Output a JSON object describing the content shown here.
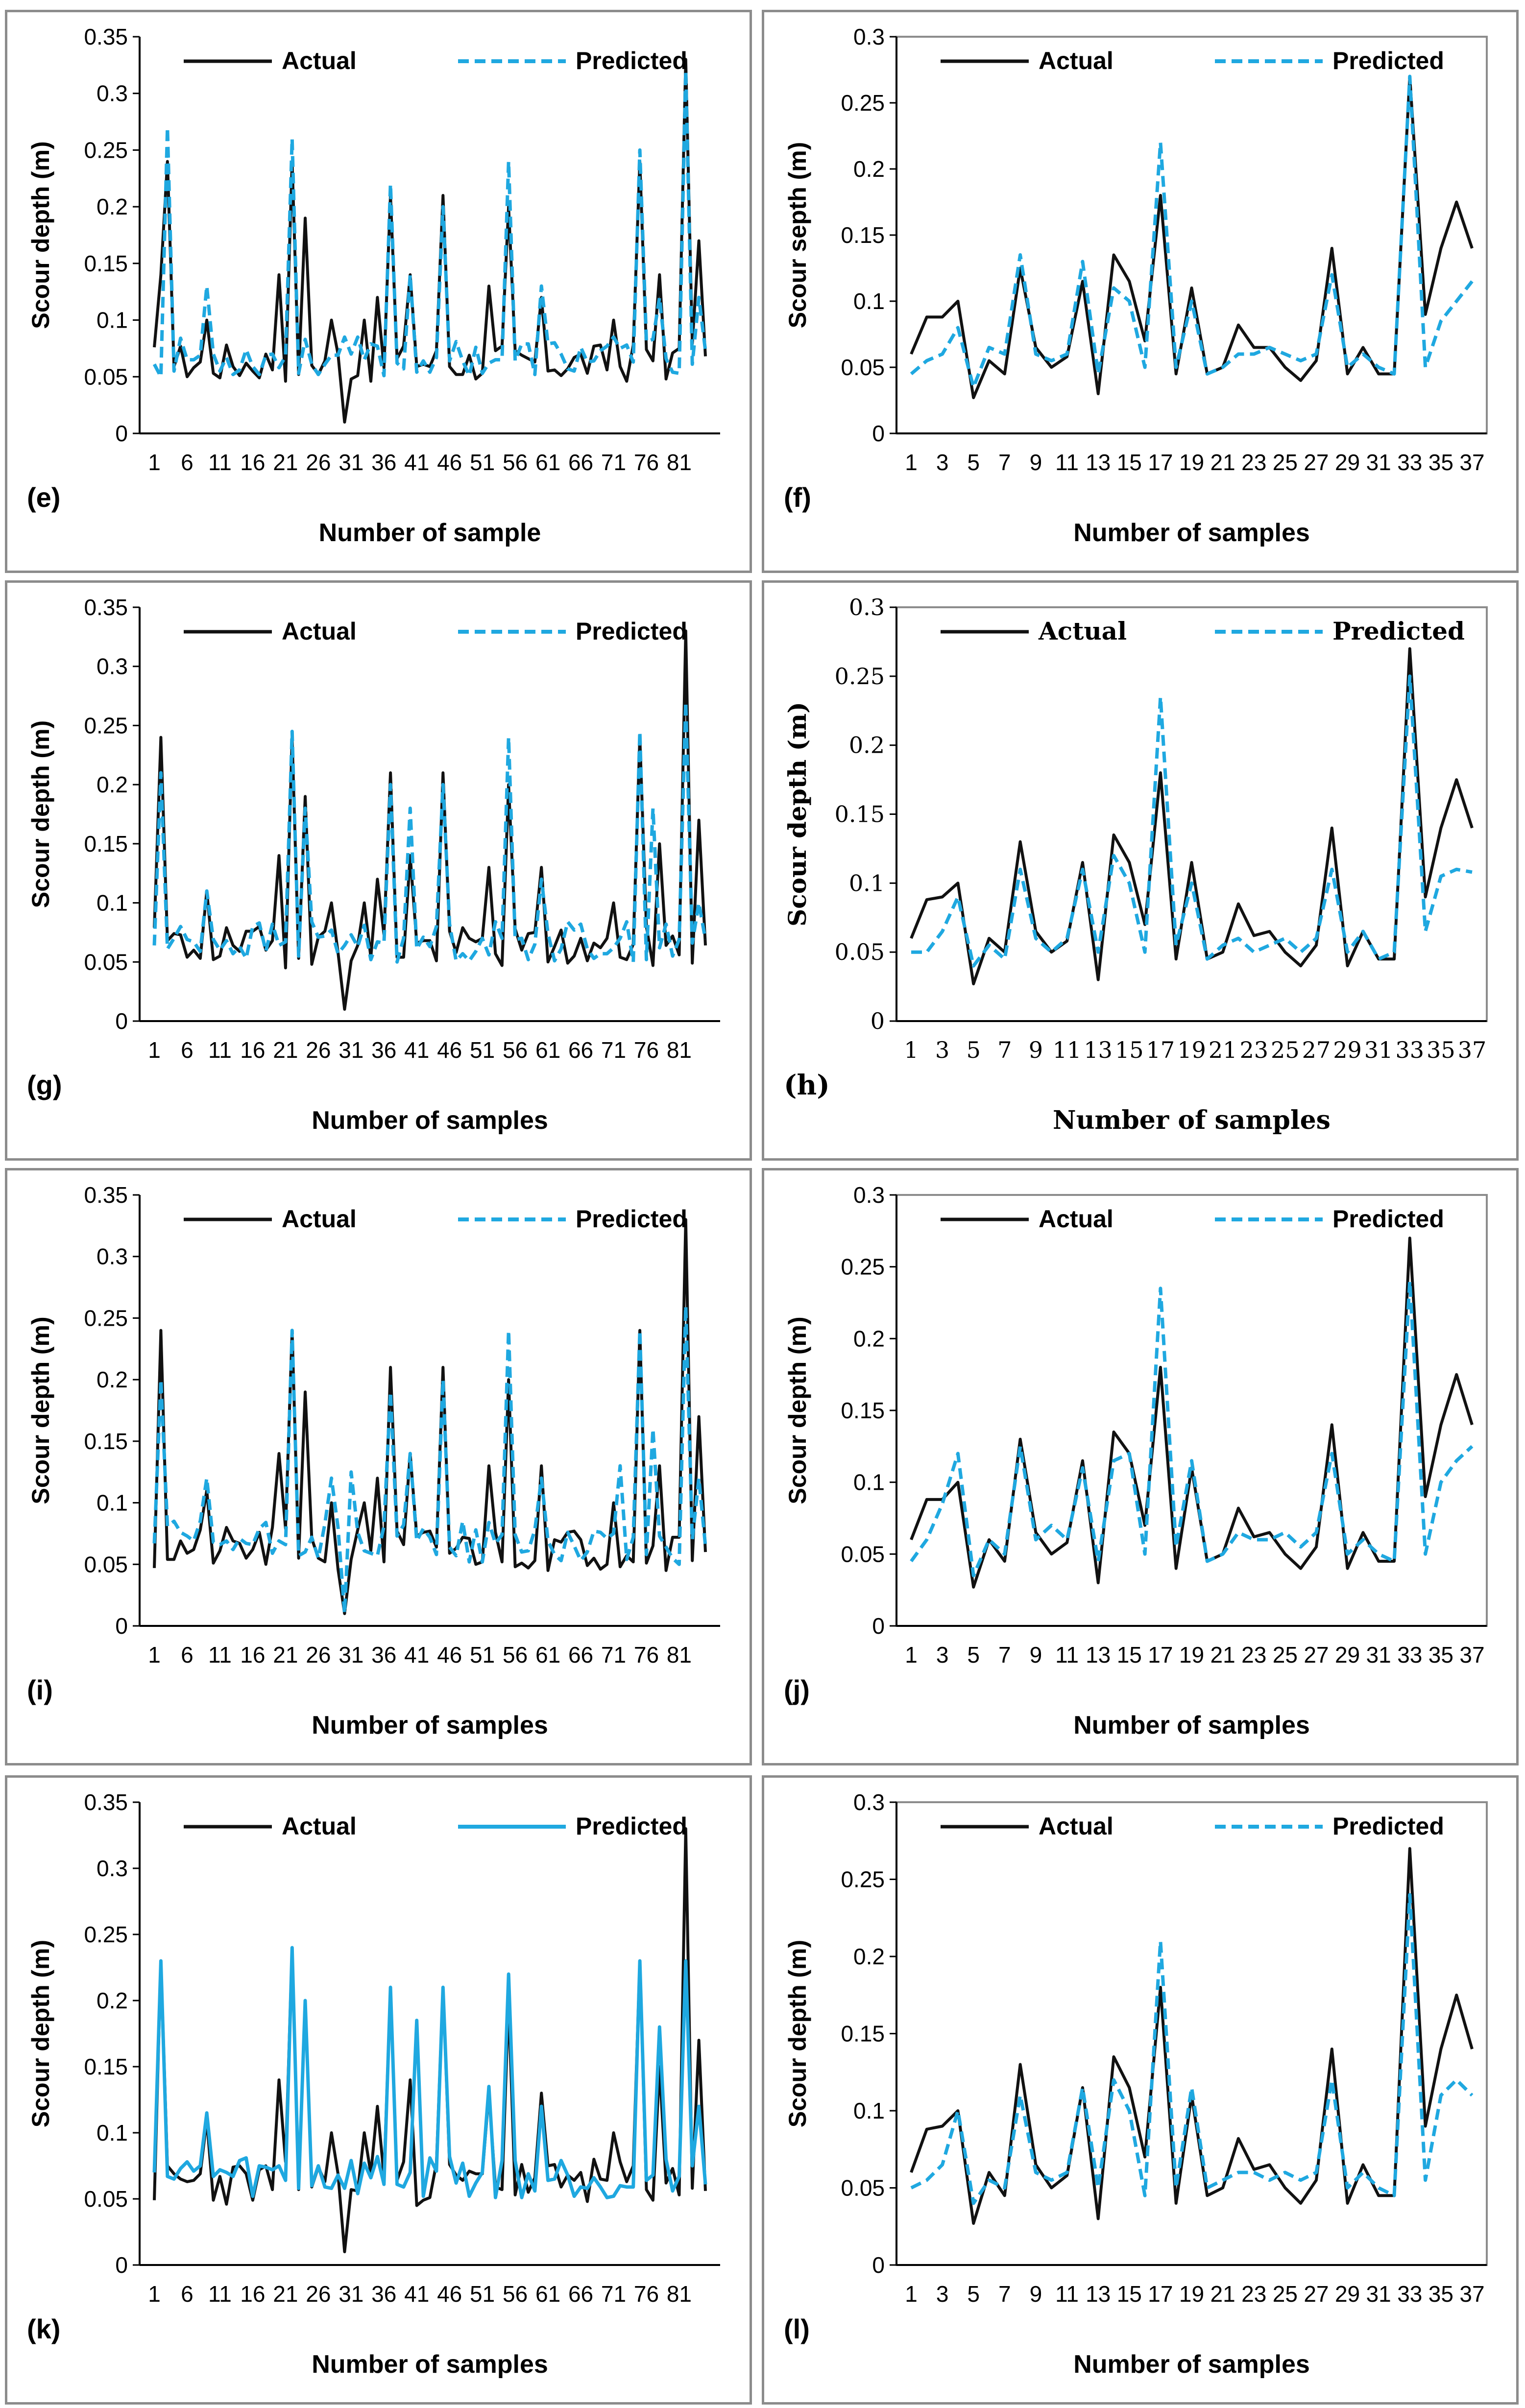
{
  "colors": {
    "actual": "#111111",
    "predicted": "#1fa8e0",
    "axis": "#000000",
    "frame": "#8c8c8c"
  },
  "chart_data": [
    {
      "panel": "(e)",
      "type": "line",
      "ylabel": "Scour depth (m)",
      "xlabel": "Number of sample",
      "ylim": [
        0,
        0.35
      ],
      "yticks": [
        "0",
        "0.05",
        "0.1",
        "0.15",
        "0.2",
        "0.25",
        "0.3",
        "0.35"
      ],
      "xtick_labels": [
        "1",
        "6",
        "11",
        "16",
        "21",
        "26",
        "31",
        "36",
        "41",
        "46",
        "51",
        "56",
        "61",
        "66",
        "71",
        "76",
        "81"
      ],
      "n": 85,
      "style": "dashed",
      "legend": {
        "actual": "Actual",
        "predicted": "Predicted"
      },
      "peaks_actual": [
        [
          2,
          0.14
        ],
        [
          3,
          0.24
        ],
        [
          9,
          0.1
        ],
        [
          20,
          0.14
        ],
        [
          22,
          0.24
        ],
        [
          24,
          0.19
        ],
        [
          28,
          0.1
        ],
        [
          30,
          0.01
        ],
        [
          33,
          0.1
        ],
        [
          35,
          0.12
        ],
        [
          37,
          0.21
        ],
        [
          40,
          0.14
        ],
        [
          45,
          0.21
        ],
        [
          52,
          0.13
        ],
        [
          55,
          0.2
        ],
        [
          60,
          0.12
        ],
        [
          66,
          0.07
        ],
        [
          71,
          0.1
        ],
        [
          75,
          0.24
        ],
        [
          78,
          0.14
        ],
        [
          82,
          0.33
        ],
        [
          84,
          0.17
        ]
      ],
      "peaks_predicted": [
        [
          3,
          0.27
        ],
        [
          9,
          0.13
        ],
        [
          22,
          0.26
        ],
        [
          37,
          0.22
        ],
        [
          40,
          0.14
        ],
        [
          45,
          0.2
        ],
        [
          55,
          0.24
        ],
        [
          60,
          0.13
        ],
        [
          75,
          0.25
        ],
        [
          78,
          0.12
        ],
        [
          82,
          0.32
        ],
        [
          84,
          0.12
        ]
      ]
    },
    {
      "panel": "(f)",
      "type": "line",
      "ylabel": "Scour septh (m)",
      "xlabel": "Number of samples",
      "ylim": [
        0,
        0.3
      ],
      "yticks": [
        "0",
        "0.05",
        "0.1",
        "0.15",
        "0.2",
        "0.25",
        "0.3"
      ],
      "xtick_labels": [
        "1",
        "3",
        "5",
        "7",
        "9",
        "11",
        "13",
        "15",
        "17",
        "19",
        "21",
        "23",
        "25",
        "27",
        "29",
        "31",
        "33",
        "35",
        "37"
      ],
      "style": "dashed",
      "legend": {
        "actual": "Actual",
        "predicted": "Predicted"
      },
      "actual": [
        0.06,
        0.088,
        0.088,
        0.1,
        0.027,
        0.055,
        0.045,
        0.125,
        0.065,
        0.05,
        0.058,
        0.115,
        0.03,
        0.135,
        0.115,
        0.07,
        0.18,
        0.045,
        0.11,
        0.045,
        0.05,
        0.082,
        0.065,
        0.065,
        0.05,
        0.04,
        0.055,
        0.14,
        0.045,
        0.065,
        0.045,
        0.045,
        0.27,
        0.09,
        0.14,
        0.175,
        0.14
      ],
      "predicted": [
        0.045,
        0.055,
        0.06,
        0.08,
        0.035,
        0.065,
        0.06,
        0.135,
        0.06,
        0.055,
        0.06,
        0.13,
        0.045,
        0.11,
        0.1,
        0.05,
        0.22,
        0.05,
        0.1,
        0.045,
        0.05,
        0.06,
        0.06,
        0.065,
        0.06,
        0.055,
        0.06,
        0.12,
        0.05,
        0.06,
        0.05,
        0.045,
        0.27,
        0.05,
        0.085,
        0.1,
        0.115
      ]
    },
    {
      "panel": "(g)",
      "type": "line",
      "ylabel": "Scour depth (m)",
      "xlabel": "Number of samples",
      "ylim": [
        0,
        0.35
      ],
      "yticks": [
        "0",
        "0.05",
        "0.1",
        "0.15",
        "0.2",
        "0.25",
        "0.3",
        "0.35"
      ],
      "xtick_labels": [
        "1",
        "6",
        "11",
        "16",
        "21",
        "26",
        "31",
        "36",
        "41",
        "46",
        "51",
        "56",
        "61",
        "66",
        "71",
        "76",
        "81"
      ],
      "n": 85,
      "style": "dashed",
      "legend": {
        "actual": "Actual",
        "predicted": "Predicted"
      },
      "peaks_actual": [
        [
          2,
          0.24
        ],
        [
          9,
          0.11
        ],
        [
          20,
          0.14
        ],
        [
          22,
          0.24
        ],
        [
          24,
          0.19
        ],
        [
          28,
          0.1
        ],
        [
          30,
          0.01
        ],
        [
          33,
          0.1
        ],
        [
          35,
          0.12
        ],
        [
          37,
          0.21
        ],
        [
          40,
          0.14
        ],
        [
          45,
          0.21
        ],
        [
          52,
          0.13
        ],
        [
          55,
          0.2
        ],
        [
          60,
          0.13
        ],
        [
          66,
          0.07
        ],
        [
          71,
          0.1
        ],
        [
          75,
          0.24
        ],
        [
          78,
          0.15
        ],
        [
          82,
          0.33
        ],
        [
          84,
          0.17
        ]
      ],
      "peaks_predicted": [
        [
          2,
          0.21
        ],
        [
          9,
          0.11
        ],
        [
          22,
          0.245
        ],
        [
          24,
          0.18
        ],
        [
          37,
          0.2
        ],
        [
          40,
          0.18
        ],
        [
          45,
          0.2
        ],
        [
          55,
          0.24
        ],
        [
          60,
          0.12
        ],
        [
          75,
          0.245
        ],
        [
          77,
          0.18
        ],
        [
          82,
          0.27
        ],
        [
          84,
          0.1
        ]
      ]
    },
    {
      "panel": "(h)",
      "type": "line",
      "ylabel": "Scour depth (m)",
      "xlabel": "Number of samples",
      "ylim": [
        0,
        0.3
      ],
      "yticks": [
        "0",
        "0.05",
        "0.1",
        "0.15",
        "0.2",
        "0.25",
        "0.3"
      ],
      "xtick_labels": [
        "1",
        "3",
        "5",
        "7",
        "9",
        "11",
        "13",
        "15",
        "17",
        "19",
        "21",
        "23",
        "25",
        "27",
        "29",
        "31",
        "33",
        "35",
        "37"
      ],
      "style": "dashed",
      "serif": true,
      "legend": {
        "actual": "Actual",
        "predicted": "Predicted"
      },
      "actual": [
        0.06,
        0.088,
        0.09,
        0.1,
        0.027,
        0.06,
        0.05,
        0.13,
        0.065,
        0.05,
        0.058,
        0.115,
        0.03,
        0.135,
        0.115,
        0.07,
        0.18,
        0.045,
        0.115,
        0.045,
        0.05,
        0.085,
        0.062,
        0.065,
        0.05,
        0.04,
        0.055,
        0.14,
        0.04,
        0.065,
        0.045,
        0.045,
        0.27,
        0.09,
        0.14,
        0.175,
        0.14
      ],
      "predicted": [
        0.05,
        0.05,
        0.065,
        0.09,
        0.04,
        0.055,
        0.045,
        0.11,
        0.06,
        0.05,
        0.06,
        0.11,
        0.05,
        0.12,
        0.1,
        0.05,
        0.235,
        0.055,
        0.1,
        0.045,
        0.055,
        0.06,
        0.05,
        0.055,
        0.06,
        0.05,
        0.06,
        0.11,
        0.05,
        0.065,
        0.045,
        0.05,
        0.25,
        0.065,
        0.105,
        0.11,
        0.108
      ]
    },
    {
      "panel": "(i)",
      "type": "line",
      "ylabel": "Scour depth (m)",
      "xlabel": "Number of samples",
      "ylim": [
        0,
        0.35
      ],
      "yticks": [
        "0",
        "0.05",
        "0.1",
        "0.15",
        "0.2",
        "0.25",
        "0.3",
        "0.35"
      ],
      "xtick_labels": [
        "1",
        "6",
        "11",
        "16",
        "21",
        "26",
        "31",
        "36",
        "41",
        "46",
        "51",
        "56",
        "61",
        "66",
        "71",
        "76",
        "81"
      ],
      "n": 85,
      "style": "dashed",
      "legend": {
        "actual": "Actual",
        "predicted": "Predicted"
      },
      "peaks_actual": [
        [
          2,
          0.24
        ],
        [
          9,
          0.11
        ],
        [
          20,
          0.14
        ],
        [
          22,
          0.24
        ],
        [
          24,
          0.19
        ],
        [
          28,
          0.1
        ],
        [
          30,
          0.01
        ],
        [
          33,
          0.1
        ],
        [
          35,
          0.12
        ],
        [
          37,
          0.21
        ],
        [
          40,
          0.14
        ],
        [
          45,
          0.21
        ],
        [
          52,
          0.13
        ],
        [
          55,
          0.2
        ],
        [
          60,
          0.13
        ],
        [
          66,
          0.07
        ],
        [
          71,
          0.1
        ],
        [
          75,
          0.24
        ],
        [
          78,
          0.13
        ],
        [
          82,
          0.33
        ],
        [
          84,
          0.17
        ]
      ],
      "peaks_predicted": [
        [
          2,
          0.2
        ],
        [
          9,
          0.12
        ],
        [
          22,
          0.24
        ],
        [
          28,
          0.12
        ],
        [
          30,
          0.01
        ],
        [
          31,
          0.125
        ],
        [
          37,
          0.19
        ],
        [
          40,
          0.14
        ],
        [
          45,
          0.2
        ],
        [
          55,
          0.24
        ],
        [
          60,
          0.12
        ],
        [
          72,
          0.13
        ],
        [
          75,
          0.24
        ],
        [
          77,
          0.16
        ],
        [
          82,
          0.26
        ],
        [
          84,
          0.12
        ]
      ]
    },
    {
      "panel": "(j)",
      "type": "line",
      "ylabel": "Scour depth (m)",
      "xlabel": "Number of samples",
      "ylim": [
        0,
        0.3
      ],
      "yticks": [
        "0",
        "0.05",
        "0.1",
        "0.15",
        "0.2",
        "0.25",
        "0.3"
      ],
      "xtick_labels": [
        "1",
        "3",
        "5",
        "7",
        "9",
        "11",
        "13",
        "15",
        "17",
        "19",
        "21",
        "23",
        "25",
        "27",
        "29",
        "31",
        "33",
        "35",
        "37"
      ],
      "style": "dashed",
      "legend": {
        "actual": "Actual",
        "predicted": "Predicted"
      },
      "actual": [
        0.06,
        0.088,
        0.088,
        0.1,
        0.027,
        0.06,
        0.045,
        0.13,
        0.065,
        0.05,
        0.058,
        0.115,
        0.03,
        0.135,
        0.12,
        0.07,
        0.18,
        0.04,
        0.11,
        0.045,
        0.05,
        0.082,
        0.062,
        0.065,
        0.05,
        0.04,
        0.055,
        0.14,
        0.04,
        0.065,
        0.045,
        0.045,
        0.27,
        0.09,
        0.14,
        0.175,
        0.14
      ],
      "predicted": [
        0.045,
        0.06,
        0.085,
        0.12,
        0.035,
        0.06,
        0.05,
        0.125,
        0.06,
        0.07,
        0.06,
        0.11,
        0.045,
        0.115,
        0.12,
        0.05,
        0.235,
        0.055,
        0.115,
        0.045,
        0.05,
        0.065,
        0.06,
        0.06,
        0.065,
        0.055,
        0.065,
        0.12,
        0.05,
        0.06,
        0.05,
        0.045,
        0.24,
        0.05,
        0.1,
        0.115,
        0.125
      ]
    },
    {
      "panel": "(k)",
      "type": "line",
      "ylabel": "Scour depth (m)",
      "xlabel": "Number of samples",
      "ylim": [
        0,
        0.35
      ],
      "yticks": [
        "0",
        "0.05",
        "0.1",
        "0.15",
        "0.2",
        "0.25",
        "0.3",
        "0.35"
      ],
      "xtick_labels": [
        "1",
        "6",
        "11",
        "16",
        "21",
        "26",
        "31",
        "36",
        "41",
        "46",
        "51",
        "56",
        "61",
        "66",
        "71",
        "76",
        "81"
      ],
      "n": 85,
      "style": "solid",
      "legend": {
        "actual": "Actual",
        "predicted": "Predicted"
      },
      "peaks_actual": [
        [
          2,
          0.23
        ],
        [
          9,
          0.11
        ],
        [
          20,
          0.14
        ],
        [
          22,
          0.24
        ],
        [
          24,
          0.2
        ],
        [
          28,
          0.1
        ],
        [
          30,
          0.01
        ],
        [
          33,
          0.1
        ],
        [
          35,
          0.12
        ],
        [
          37,
          0.21
        ],
        [
          40,
          0.14
        ],
        [
          45,
          0.21
        ],
        [
          52,
          0.13
        ],
        [
          55,
          0.2
        ],
        [
          60,
          0.13
        ],
        [
          66,
          0.07
        ],
        [
          71,
          0.1
        ],
        [
          75,
          0.23
        ],
        [
          78,
          0.15
        ],
        [
          82,
          0.33
        ],
        [
          84,
          0.17
        ]
      ],
      "peaks_predicted": [
        [
          2,
          0.23
        ],
        [
          9,
          0.115
        ],
        [
          22,
          0.24
        ],
        [
          24,
          0.2
        ],
        [
          37,
          0.21
        ],
        [
          41,
          0.185
        ],
        [
          45,
          0.21
        ],
        [
          52,
          0.135
        ],
        [
          55,
          0.22
        ],
        [
          60,
          0.12
        ],
        [
          75,
          0.23
        ],
        [
          78,
          0.18
        ],
        [
          82,
          0.23
        ],
        [
          84,
          0.12
        ]
      ]
    },
    {
      "panel": "(l)",
      "type": "line",
      "ylabel": "Scour depth (m)",
      "xlabel": "Number of samples",
      "ylim": [
        0,
        0.3
      ],
      "yticks": [
        "0",
        "0.05",
        "0.1",
        "0.15",
        "0.2",
        "0.25",
        "0.3"
      ],
      "xtick_labels": [
        "1",
        "3",
        "5",
        "7",
        "9",
        "11",
        "13",
        "15",
        "17",
        "19",
        "21",
        "23",
        "25",
        "27",
        "29",
        "31",
        "33",
        "35",
        "37"
      ],
      "style": "dashed",
      "legend": {
        "actual": "Actual",
        "predicted": "Predicted"
      },
      "actual": [
        0.06,
        0.088,
        0.09,
        0.1,
        0.027,
        0.06,
        0.045,
        0.13,
        0.065,
        0.05,
        0.058,
        0.115,
        0.03,
        0.135,
        0.115,
        0.07,
        0.18,
        0.04,
        0.11,
        0.045,
        0.05,
        0.082,
        0.062,
        0.065,
        0.05,
        0.04,
        0.055,
        0.14,
        0.04,
        0.065,
        0.045,
        0.045,
        0.27,
        0.09,
        0.14,
        0.175,
        0.14
      ],
      "predicted": [
        0.05,
        0.055,
        0.065,
        0.1,
        0.04,
        0.055,
        0.05,
        0.11,
        0.06,
        0.055,
        0.06,
        0.115,
        0.05,
        0.12,
        0.1,
        0.045,
        0.21,
        0.05,
        0.115,
        0.05,
        0.055,
        0.06,
        0.06,
        0.055,
        0.06,
        0.055,
        0.06,
        0.12,
        0.05,
        0.06,
        0.05,
        0.045,
        0.24,
        0.055,
        0.11,
        0.12,
        0.11
      ]
    }
  ]
}
